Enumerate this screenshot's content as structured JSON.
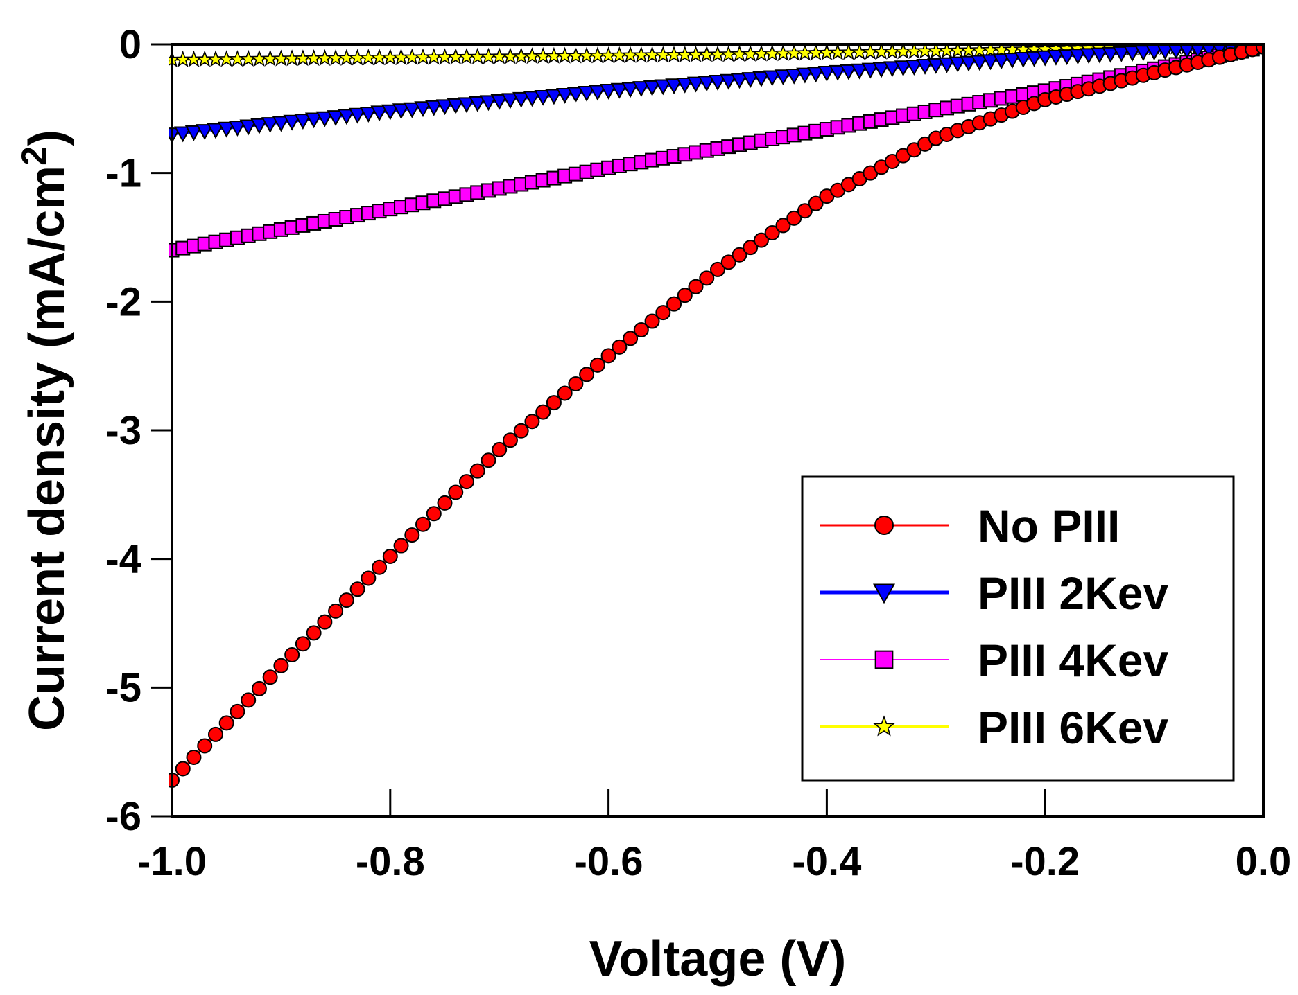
{
  "chart_data": {
    "type": "scatter",
    "title": "",
    "xlabel": "Voltage (V)",
    "ylabel_main": "Current density (mA/cm",
    "ylabel_sup": "2",
    "ylabel_close": ")",
    "xlim": [
      -1.0,
      0.0
    ],
    "ylim": [
      -6,
      0
    ],
    "xticks": [
      -1.0,
      -0.8,
      -0.6,
      -0.4,
      -0.2,
      0.0
    ],
    "xtick_labels": [
      "-1.0",
      "-0.8",
      "-0.6",
      "-0.4",
      "-0.2",
      "0.0"
    ],
    "yticks": [
      0,
      -1,
      -2,
      -3,
      -4,
      -5,
      -6
    ],
    "ytick_labels": [
      "0",
      "-1",
      "-2",
      "-3",
      "-4",
      "-5",
      "-6"
    ],
    "grid": false,
    "legend_position": "bottom-right",
    "x_step": 0.01,
    "series": [
      {
        "name": "No PIII",
        "line_color": "#ff0000",
        "marker": "circle",
        "marker_color": "#ff0000",
        "key_points": [
          [
            -1.0,
            -5.72
          ],
          [
            -0.9,
            -4.83
          ],
          [
            -0.8,
            -3.98
          ],
          [
            -0.7,
            -3.15
          ],
          [
            -0.6,
            -2.42
          ],
          [
            -0.5,
            -1.75
          ],
          [
            -0.4,
            -1.18
          ],
          [
            -0.3,
            -0.73
          ],
          [
            -0.2,
            -0.43
          ],
          [
            -0.1,
            -0.22
          ],
          [
            0.0,
            -0.02
          ]
        ]
      },
      {
        "name": "PIII 2Kev",
        "line_color": "#0000ff",
        "marker": "triangle-down",
        "marker_color": "#0000ff",
        "key_points": [
          [
            -1.0,
            -0.7
          ],
          [
            -0.8,
            -0.52
          ],
          [
            -0.6,
            -0.36
          ],
          [
            -0.4,
            -0.22
          ],
          [
            -0.2,
            -0.1
          ],
          [
            0.0,
            -0.01
          ]
        ]
      },
      {
        "name": "PIII 4Kev",
        "line_color": "#ff00ff",
        "marker": "square",
        "marker_color": "#ff00ff",
        "key_points": [
          [
            -1.0,
            -1.6
          ],
          [
            -0.8,
            -1.28
          ],
          [
            -0.6,
            -0.96
          ],
          [
            -0.4,
            -0.66
          ],
          [
            -0.2,
            -0.36
          ],
          [
            0.0,
            -0.02
          ]
        ]
      },
      {
        "name": "PIII 6Kev",
        "line_color": "#ffff00",
        "marker": "star",
        "marker_color": "#ffff00",
        "key_points": [
          [
            -1.0,
            -0.12
          ],
          [
            -0.5,
            -0.08
          ],
          [
            0.0,
            -0.01
          ]
        ]
      }
    ]
  }
}
